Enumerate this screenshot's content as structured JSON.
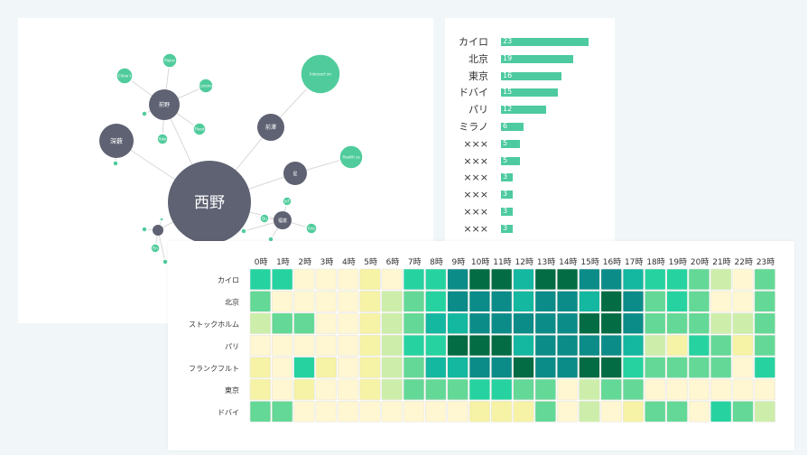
{
  "network": {
    "center": "西野",
    "nodes": [
      {
        "label": "西野",
        "group": "center"
      },
      {
        "label": "前野",
        "group": "hub"
      },
      {
        "label": "深薮",
        "group": "hub"
      },
      {
        "label": "前澤",
        "group": "hub"
      },
      {
        "label": "星",
        "group": "hub"
      },
      {
        "label": "福富",
        "group": "hub"
      },
      {
        "label": "",
        "group": "hub"
      },
      {
        "label": "Chloe t",
        "group": "leaf"
      },
      {
        "label": "Pietro",
        "group": "leaf"
      },
      {
        "label": "Loreno",
        "group": "leaf"
      },
      {
        "label": "Flood",
        "group": "leaf"
      },
      {
        "label": "Yoko",
        "group": "leaf"
      },
      {
        "label": "Intersect on",
        "group": "leaf"
      },
      {
        "label": "Health ca",
        "group": "leaf"
      },
      {
        "label": "Arts",
        "group": "leaf"
      },
      {
        "label": "IoT",
        "group": "leaf"
      },
      {
        "label": "Qu",
        "group": "leaf"
      },
      {
        "label": "Fin",
        "group": "leaf"
      },
      {
        "label": "",
        "group": "leaf"
      },
      {
        "label": "",
        "group": "leaf"
      },
      {
        "label": "",
        "group": "leaf"
      },
      {
        "label": "",
        "group": "leaf"
      },
      {
        "label": "",
        "group": "leaf"
      },
      {
        "label": "",
        "group": "leaf"
      },
      {
        "label": "",
        "group": "leaf"
      }
    ],
    "colors": {
      "hub": "#5e6272",
      "leaf": "#50cc9c",
      "edge": "#d8d8d8"
    }
  },
  "chart_data": [
    {
      "type": "bar",
      "orientation": "horizontal",
      "categories": [
        "カイロ",
        "北京",
        "東京",
        "ドバイ",
        "パリ",
        "ミラノ",
        "×××",
        "×××",
        "×××",
        "×××",
        "×××",
        "×××"
      ],
      "values": [
        23,
        19,
        16,
        15,
        12,
        6,
        5,
        5,
        3,
        3,
        3,
        3
      ],
      "color": "#4dcaa0"
    },
    {
      "type": "heatmap",
      "x": [
        "0時",
        "1時",
        "2時",
        "3時",
        "4時",
        "5時",
        "6時",
        "7時",
        "8時",
        "9時",
        "10時",
        "11時",
        "12時",
        "13時",
        "14時",
        "15時",
        "16時",
        "17時",
        "18時",
        "19時",
        "20時",
        "21時",
        "22時",
        "23時"
      ],
      "y": [
        "カイロ",
        "北京",
        "ストックホルム",
        "パリ",
        "フランクフルト",
        "東京",
        "ドバイ"
      ],
      "levels": [
        [
          5,
          5,
          1,
          1,
          1,
          2,
          1,
          5,
          5,
          7,
          8,
          8,
          6,
          8,
          8,
          7,
          7,
          6,
          5,
          5,
          4,
          3,
          1,
          4
        ],
        [
          4,
          1,
          1,
          1,
          1,
          2,
          3,
          4,
          5,
          7,
          7,
          7,
          6,
          7,
          7,
          6,
          8,
          7,
          4,
          5,
          4,
          1,
          1,
          4
        ],
        [
          3,
          4,
          4,
          1,
          1,
          2,
          3,
          4,
          6,
          6,
          7,
          7,
          7,
          7,
          7,
          8,
          8,
          7,
          4,
          4,
          4,
          3,
          3,
          4
        ],
        [
          1,
          1,
          1,
          1,
          1,
          2,
          3,
          5,
          5,
          8,
          8,
          8,
          6,
          7,
          7,
          7,
          7,
          6,
          3,
          2,
          5,
          4,
          2,
          4
        ],
        [
          2,
          1,
          5,
          2,
          1,
          2,
          3,
          4,
          6,
          6,
          7,
          7,
          8,
          7,
          7,
          8,
          8,
          5,
          4,
          4,
          4,
          4,
          1,
          5
        ],
        [
          2,
          1,
          2,
          1,
          1,
          2,
          3,
          4,
          4,
          4,
          5,
          5,
          4,
          4,
          1,
          3,
          4,
          4,
          1,
          1,
          1,
          1,
          1,
          1
        ],
        [
          4,
          4,
          1,
          1,
          1,
          1,
          1,
          1,
          1,
          1,
          2,
          2,
          2,
          4,
          1,
          3,
          1,
          2,
          4,
          4,
          1,
          5,
          4,
          3
        ]
      ],
      "palette": [
        "#ffffff",
        "#fff6d2",
        "#f6f2a6",
        "#cdeeaa",
        "#64d896",
        "#26d3a0",
        "#14b7a0",
        "#0c8c88",
        "#036c44"
      ]
    }
  ]
}
